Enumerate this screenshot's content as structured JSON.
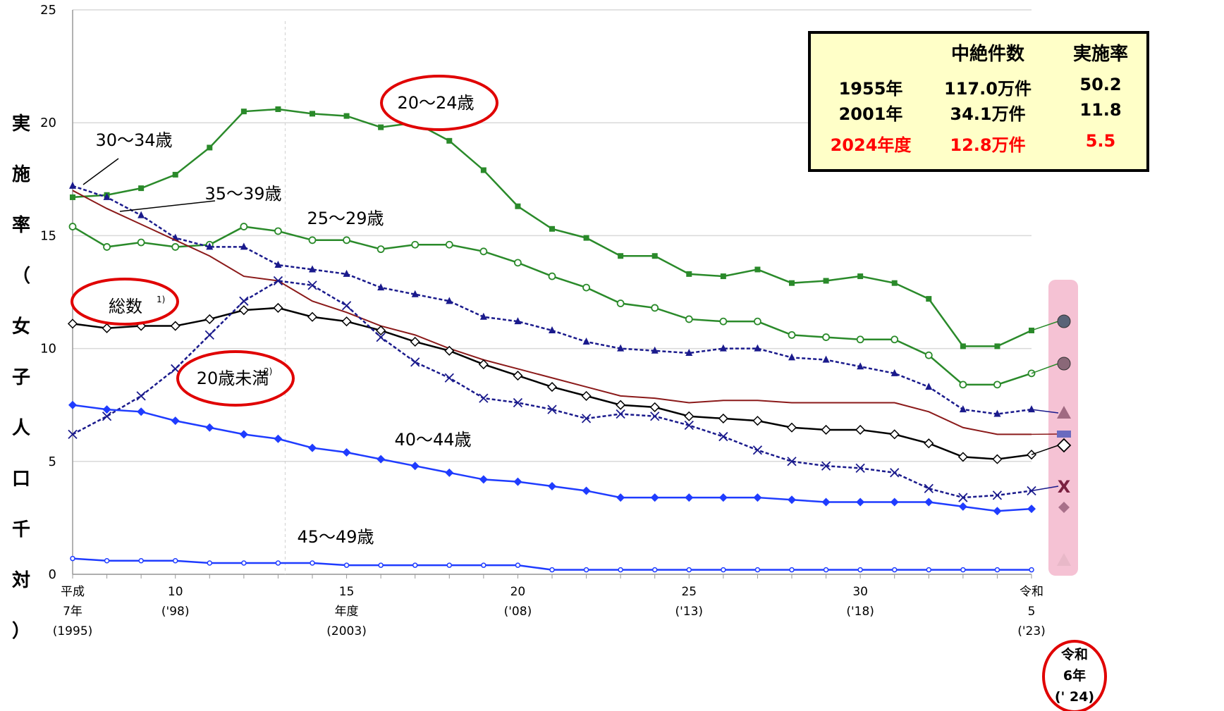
{
  "y_axis_title": [
    "実",
    "施",
    "率",
    "（",
    "女",
    "子",
    "人",
    "口",
    "千",
    "対",
    "）"
  ],
  "summary_table": {
    "headers": [
      "",
      "中絶件数",
      "実施率"
    ],
    "rows": [
      {
        "year": "1955年",
        "count": "117.0万件",
        "rate": "50.2",
        "highlight": false
      },
      {
        "year": "2001年",
        "count": "34.1万件",
        "rate": "11.8",
        "highlight": false
      },
      {
        "year": "2024年度",
        "count": "12.8万件",
        "rate": "5.5",
        "highlight": true
      }
    ]
  },
  "colors": {
    "green": "#2a8a2a",
    "navy": "#1a1a8c",
    "blue": "#1f3cff",
    "brown": "#8b1a1a",
    "black": "#000000",
    "red_circle": "#e00000",
    "pink_band": "#f5c2d4",
    "grid": "#d9d9d9"
  },
  "chart_data": {
    "type": "line",
    "ylim": [
      0,
      25
    ],
    "yticks": [
      0,
      5,
      10,
      15,
      20,
      25
    ],
    "grid": true,
    "x": [
      1995,
      1996,
      1997,
      1998,
      1999,
      2000,
      2001,
      2002,
      2003,
      2004,
      2005,
      2006,
      2007,
      2008,
      2009,
      2010,
      2011,
      2012,
      2013,
      2014,
      2015,
      2016,
      2017,
      2018,
      2019,
      2020,
      2021,
      2022,
      2023
    ],
    "xtick_labels": [
      {
        "x": 1995,
        "lines": [
          "平成",
          "7年",
          "(1995)"
        ]
      },
      {
        "x": 1998,
        "lines": [
          "10",
          "('98)"
        ]
      },
      {
        "x": 2003,
        "lines": [
          "15",
          "年度",
          "(2003)"
        ]
      },
      {
        "x": 2008,
        "lines": [
          "20",
          "('08)"
        ]
      },
      {
        "x": 2013,
        "lines": [
          "25",
          "('13)"
        ]
      },
      {
        "x": 2018,
        "lines": [
          "30",
          "('18)"
        ]
      },
      {
        "x": 2023,
        "lines": [
          "令和",
          "5",
          "('23)"
        ]
      }
    ],
    "extra_tick_label": [
      "令和",
      "6年",
      "(' 24)"
    ],
    "series": [
      {
        "name": "20～24歳",
        "color": "#2a8a2a",
        "marker": "square",
        "dashed": false,
        "values": [
          16.7,
          16.8,
          17.1,
          17.7,
          18.9,
          20.5,
          20.6,
          20.4,
          20.3,
          19.8,
          20.0,
          19.2,
          17.9,
          16.3,
          15.3,
          14.9,
          14.1,
          14.1,
          13.3,
          13.2,
          13.5,
          12.9,
          13.0,
          13.2,
          12.9,
          12.2,
          10.1,
          10.1,
          10.8
        ]
      },
      {
        "name": "25～29歳",
        "color": "#2a8a2a",
        "marker": "circle-open",
        "dashed": false,
        "values": [
          15.4,
          14.5,
          14.7,
          14.5,
          14.6,
          15.4,
          15.2,
          14.8,
          14.8,
          14.4,
          14.6,
          14.6,
          14.3,
          13.8,
          13.2,
          12.7,
          12.0,
          11.8,
          11.3,
          11.2,
          11.2,
          10.6,
          10.5,
          10.4,
          10.4,
          9.7,
          8.4,
          8.4,
          8.9
        ]
      },
      {
        "name": "30～34歳",
        "color": "#1a1a8c",
        "marker": "triangle",
        "dashed": true,
        "values": [
          17.2,
          16.7,
          15.9,
          14.9,
          14.5,
          14.5,
          13.7,
          13.5,
          13.3,
          12.7,
          12.4,
          12.1,
          11.4,
          11.2,
          10.8,
          10.3,
          10.0,
          9.9,
          9.8,
          10.0,
          10.0,
          9.6,
          9.5,
          9.2,
          8.9,
          8.3,
          7.3,
          7.1,
          7.3
        ]
      },
      {
        "name": "35～39歳",
        "color": "#8b1a1a",
        "marker": "none",
        "dashed": false,
        "values": [
          17.0,
          16.2,
          15.5,
          14.8,
          14.1,
          13.2,
          13.0,
          12.1,
          11.6,
          11.0,
          10.6,
          10.0,
          9.5,
          9.1,
          8.7,
          8.3,
          7.9,
          7.8,
          7.6,
          7.7,
          7.7,
          7.6,
          7.6,
          7.6,
          7.6,
          7.2,
          6.5,
          6.2,
          6.2
        ]
      },
      {
        "name": "総数",
        "color": "#000000",
        "marker": "diamond-open",
        "dashed": false,
        "values": [
          11.1,
          10.9,
          11.0,
          11.0,
          11.3,
          11.7,
          11.8,
          11.4,
          11.2,
          10.8,
          10.3,
          9.9,
          9.3,
          8.8,
          8.3,
          7.9,
          7.5,
          7.4,
          7.0,
          6.9,
          6.8,
          6.5,
          6.4,
          6.4,
          6.2,
          5.8,
          5.2,
          5.1,
          5.3
        ]
      },
      {
        "name": "20歳未満",
        "color": "#1a1a8c",
        "marker": "x",
        "dashed": true,
        "values": [
          6.2,
          7.0,
          7.9,
          9.1,
          10.6,
          12.1,
          13.0,
          12.8,
          11.9,
          10.5,
          9.4,
          8.7,
          7.8,
          7.6,
          7.3,
          6.9,
          7.1,
          7.0,
          6.6,
          6.1,
          5.5,
          5.0,
          4.8,
          4.7,
          4.5,
          3.8,
          3.4,
          3.5,
          3.7
        ]
      },
      {
        "name": "40～44歳",
        "color": "#1f3cff",
        "marker": "diamond",
        "dashed": false,
        "values": [
          7.5,
          7.3,
          7.2,
          6.8,
          6.5,
          6.2,
          6.0,
          5.6,
          5.4,
          5.1,
          4.8,
          4.5,
          4.2,
          4.1,
          3.9,
          3.7,
          3.4,
          3.4,
          3.4,
          3.4,
          3.4,
          3.3,
          3.2,
          3.2,
          3.2,
          3.2,
          3.0,
          2.8,
          2.9
        ]
      },
      {
        "name": "45～49歳",
        "color": "#1f3cff",
        "marker": "circle-open-small",
        "dashed": false,
        "values": [
          0.7,
          0.6,
          0.6,
          0.6,
          0.5,
          0.5,
          0.5,
          0.5,
          0.4,
          0.4,
          0.4,
          0.4,
          0.4,
          0.4,
          0.2,
          0.2,
          0.2,
          0.2,
          0.2,
          0.2,
          0.2,
          0.2,
          0.2,
          0.2,
          0.2,
          0.2,
          0.2,
          0.2,
          0.2
        ]
      }
    ],
    "series_labels": [
      {
        "text": "20～24歳",
        "circled": true,
        "superscript": ""
      },
      {
        "text": "30～34歳",
        "circled": false,
        "superscript": ""
      },
      {
        "text": "35～39歳",
        "circled": false,
        "superscript": ""
      },
      {
        "text": "25～29歳",
        "circled": false,
        "superscript": ""
      },
      {
        "text": "総数",
        "circled": true,
        "superscript": "1)"
      },
      {
        "text": "20歳未満",
        "circled": true,
        "superscript": "2)"
      },
      {
        "text": "40～44歳",
        "circled": false,
        "superscript": ""
      },
      {
        "text": "45～49歳",
        "circled": false,
        "superscript": ""
      }
    ],
    "highlight_2024": [
      {
        "series": "20～24歳",
        "marker": "circle-filled",
        "color": "#5a6478"
      },
      {
        "series": "25～29歳",
        "marker": "circle-filled",
        "color": "#8a6878"
      },
      {
        "series": "30～34歳",
        "marker": "triangle",
        "color": "#a06a82"
      },
      {
        "series": "35～39歳",
        "marker": "bar",
        "color": "#6a6abf"
      },
      {
        "series": "総数",
        "marker": "diamond-open",
        "color": "#000000"
      },
      {
        "series": "20歳未満",
        "marker": "x",
        "color": "#7a2040"
      },
      {
        "series": "40～44歳",
        "marker": "diamond",
        "color": "#a8708a"
      },
      {
        "series": "45～49歳",
        "marker": "triangle",
        "color": "#e8b8c8"
      }
    ]
  }
}
